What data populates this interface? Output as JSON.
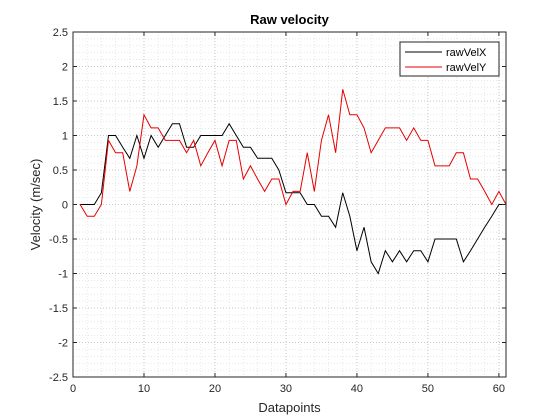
{
  "chart_data": {
    "type": "line",
    "title": "Raw velocity",
    "xlabel": "Datapoints",
    "ylabel": "Velocity (m/sec)",
    "xlim": [
      0,
      61
    ],
    "ylim": [
      -2.5,
      2.5
    ],
    "xticks": [
      0,
      10,
      20,
      30,
      40,
      50,
      60
    ],
    "yticks": [
      -2.5,
      -2,
      -1.5,
      -1,
      -0.5,
      0,
      0.5,
      1,
      1.5,
      2,
      2.5
    ],
    "grid": "on (dotted, with minor grid)",
    "legend_location": "top-right",
    "x": [
      1,
      2,
      3,
      4,
      5,
      6,
      7,
      8,
      9,
      10,
      11,
      12,
      13,
      14,
      15,
      16,
      17,
      18,
      19,
      20,
      21,
      22,
      23,
      24,
      25,
      26,
      27,
      28,
      29,
      30,
      31,
      32,
      33,
      34,
      35,
      36,
      37,
      38,
      39,
      40,
      41,
      42,
      43,
      44,
      45,
      46,
      47,
      48,
      49,
      50,
      51,
      52,
      53,
      54,
      55,
      56,
      57,
      58,
      59,
      60,
      61
    ],
    "series": [
      {
        "name": "rawVelX",
        "color": "#000000",
        "values": [
          0,
          0,
          0,
          0.17,
          1.0,
          1.0,
          0.83,
          0.67,
          1.0,
          0.67,
          1.0,
          0.83,
          1.0,
          1.17,
          1.17,
          0.83,
          0.83,
          1.0,
          1.0,
          1.0,
          1.0,
          1.17,
          1.0,
          0.83,
          0.83,
          0.67,
          0.67,
          0.67,
          0.5,
          0.17,
          0.17,
          0.17,
          0,
          0,
          -0.17,
          -0.17,
          -0.33,
          0.17,
          -0.17,
          -0.67,
          -0.33,
          -0.83,
          -1.0,
          -0.67,
          -0.83,
          -0.67,
          -0.83,
          -0.67,
          -0.67,
          -0.83,
          -0.5,
          -0.5,
          -0.5,
          -0.5,
          -0.83,
          -0.67,
          -0.5,
          -0.33,
          -0.17,
          0,
          0
        ]
      },
      {
        "name": "rawVelY",
        "color": "#e60000",
        "values": [
          0,
          -0.17,
          -0.17,
          0,
          0.93,
          0.75,
          0.75,
          0.19,
          0.56,
          1.3,
          1.11,
          1.11,
          0.93,
          0.93,
          0.93,
          0.75,
          0.93,
          0.56,
          0.75,
          0.93,
          0.56,
          0.93,
          0.93,
          0.37,
          0.56,
          0.37,
          0.19,
          0.37,
          0.37,
          0,
          0.19,
          0.19,
          0.75,
          0.19,
          0.93,
          1.3,
          0.75,
          1.67,
          1.3,
          1.3,
          1.11,
          0.75,
          0.93,
          1.11,
          1.11,
          1.11,
          0.93,
          1.11,
          0.93,
          0.93,
          0.56,
          0.56,
          0.56,
          0.75,
          0.75,
          0.37,
          0.37,
          0.19,
          0,
          0.19,
          0
        ]
      }
    ]
  }
}
